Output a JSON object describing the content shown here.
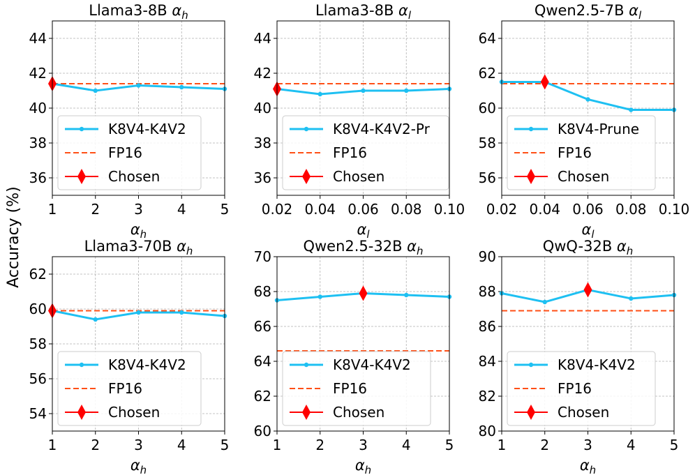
{
  "figure": {
    "ylabel": "Accuracy (%)",
    "colors": {
      "series": "#1ec0f2",
      "fp16": "#ff4f16",
      "chosen": "#ff0000",
      "grid": "#b0b0b0"
    }
  },
  "chart_data": [
    {
      "type": "line",
      "title_main": "Llama3-8B ",
      "title_sym": "α",
      "title_sub": "h",
      "xlabel_sym": "α",
      "xlabel_sub": "h",
      "x": [
        1,
        2,
        3,
        4,
        5
      ],
      "xticks": [
        "1",
        "2",
        "3",
        "4",
        "5"
      ],
      "xlim": [
        1,
        5
      ],
      "ylim": [
        35,
        45
      ],
      "yticks": [
        36,
        38,
        40,
        42,
        44
      ],
      "series": [
        {
          "name": "K8V4-K4V2",
          "values": [
            41.4,
            41.0,
            41.3,
            41.2,
            41.1
          ]
        },
        {
          "name": "FP16",
          "value": 41.4
        },
        {
          "name": "Chosen",
          "point": [
            1,
            41.4
          ]
        }
      ],
      "legend": "lower-left"
    },
    {
      "type": "line",
      "title_main": "Llama3-8B ",
      "title_sym": "α",
      "title_sub": "l",
      "xlabel_sym": "α",
      "xlabel_sub": "l",
      "x": [
        0.02,
        0.04,
        0.06,
        0.08,
        0.1
      ],
      "xticks": [
        "0.02",
        "0.04",
        "0.06",
        "0.08",
        "0.10"
      ],
      "xlim": [
        0.02,
        0.1
      ],
      "ylim": [
        35,
        45
      ],
      "yticks": [
        36,
        38,
        40,
        42,
        44
      ],
      "series": [
        {
          "name": "K8V4-K4V2-Pr",
          "values": [
            41.1,
            40.8,
            41.0,
            41.0,
            41.1
          ]
        },
        {
          "name": "FP16",
          "value": 41.4
        },
        {
          "name": "Chosen",
          "point": [
            0.02,
            41.1
          ]
        }
      ],
      "legend": "lower-left"
    },
    {
      "type": "line",
      "title_main": "Qwen2.5-7B ",
      "title_sym": "α",
      "title_sub": "l",
      "xlabel_sym": "α",
      "xlabel_sub": "l",
      "x": [
        0.02,
        0.04,
        0.06,
        0.08,
        0.1
      ],
      "xticks": [
        "0.02",
        "0.04",
        "0.06",
        "0.08",
        "0.10"
      ],
      "xlim": [
        0.02,
        0.1
      ],
      "ylim": [
        55,
        65
      ],
      "yticks": [
        56,
        58,
        60,
        62,
        64
      ],
      "series": [
        {
          "name": "K8V4-Prune",
          "values": [
            61.5,
            61.5,
            60.5,
            59.9,
            59.9
          ]
        },
        {
          "name": "FP16",
          "value": 61.4
        },
        {
          "name": "Chosen",
          "point": [
            0.04,
            61.5
          ]
        }
      ],
      "legend": "lower-left"
    },
    {
      "type": "line",
      "title_main": "Llama3-70B ",
      "title_sym": "α",
      "title_sub": "h",
      "xlabel_sym": "α",
      "xlabel_sub": "h",
      "x": [
        1,
        2,
        3,
        4,
        5
      ],
      "xticks": [
        "1",
        "2",
        "3",
        "4",
        "5"
      ],
      "xlim": [
        1,
        5
      ],
      "ylim": [
        53,
        63
      ],
      "yticks": [
        54,
        56,
        58,
        60,
        62
      ],
      "series": [
        {
          "name": "K8V4-K4V2",
          "values": [
            59.9,
            59.4,
            59.8,
            59.8,
            59.6
          ]
        },
        {
          "name": "FP16",
          "value": 59.9
        },
        {
          "name": "Chosen",
          "point": [
            1,
            59.9
          ]
        }
      ],
      "legend": "lower-left"
    },
    {
      "type": "line",
      "title_main": "Qwen2.5-32B ",
      "title_sym": "α",
      "title_sub": "h",
      "xlabel_sym": "α",
      "xlabel_sub": "h",
      "x": [
        1,
        2,
        3,
        4,
        5
      ],
      "xticks": [
        "1",
        "2",
        "3",
        "4",
        "5"
      ],
      "xlim": [
        1,
        5
      ],
      "ylim": [
        60,
        70
      ],
      "yticks": [
        60,
        62,
        64,
        66,
        68,
        70
      ],
      "series": [
        {
          "name": "K8V4-K4V2",
          "values": [
            67.5,
            67.7,
            67.9,
            67.8,
            67.7
          ]
        },
        {
          "name": "FP16",
          "value": 64.6
        },
        {
          "name": "Chosen",
          "point": [
            3,
            67.9
          ]
        }
      ],
      "legend": "lower-left"
    },
    {
      "type": "line",
      "title_main": "QwQ-32B ",
      "title_sym": "α",
      "title_sub": "h",
      "xlabel_sym": "α",
      "xlabel_sub": "h",
      "x": [
        1,
        2,
        3,
        4,
        5
      ],
      "xticks": [
        "1",
        "2",
        "3",
        "4",
        "5"
      ],
      "xlim": [
        1,
        5
      ],
      "ylim": [
        80,
        90
      ],
      "yticks": [
        80,
        82,
        84,
        86,
        88,
        90
      ],
      "series": [
        {
          "name": "K8V4-K4V2",
          "values": [
            87.9,
            87.4,
            88.1,
            87.6,
            87.8
          ]
        },
        {
          "name": "FP16",
          "value": 86.9
        },
        {
          "name": "Chosen",
          "point": [
            3,
            88.1
          ]
        }
      ],
      "legend": "lower-left"
    }
  ]
}
